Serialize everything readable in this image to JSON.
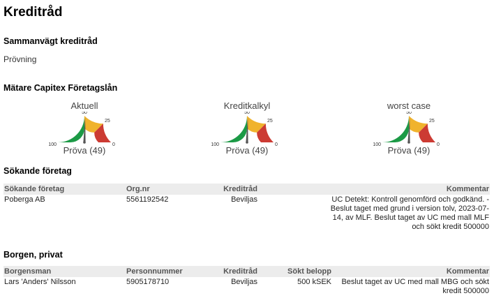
{
  "page_title": "Kreditråd",
  "overall": {
    "heading": "Sammanvägt kreditråd",
    "value": "Prövning"
  },
  "meters": {
    "heading": "Mätare Capitex Företagslån",
    "scale_labels": {
      "min": "100",
      "mid": "50",
      "quarter": "25",
      "max": "0"
    },
    "colors": {
      "green": "#1c9a46",
      "yellow": "#f0b32d",
      "red": "#cc3b33",
      "needle": "#555555"
    },
    "items": [
      {
        "title": "Aktuell",
        "value_text": "Pröva (49)",
        "value": 49
      },
      {
        "title": "Kreditkalkyl",
        "value_text": "Pröva (49)",
        "value": 49
      },
      {
        "title": "worst case",
        "value_text": "Pröva (49)",
        "value": 49
      }
    ]
  },
  "applicant": {
    "heading": "Sökande företag",
    "columns": [
      "Sökande företag",
      "Org.nr",
      "Kreditråd",
      "Kommentar"
    ],
    "rows": [
      {
        "name": "Poberga AB",
        "orgnr": "5561192542",
        "advice": "Beviljas",
        "comment_lines": [
          "UC Detekt: Kontroll genomförd och godkänd. -",
          "Beslut taget med grund i version tolv, 2023-07-",
          "14, av MLF. Beslut taget av UC med mall MLF",
          "och sökt kredit 500000"
        ]
      }
    ]
  },
  "guarantor": {
    "heading": "Borgen, privat",
    "columns": [
      "Borgensman",
      "Personnummer",
      "Kreditråd",
      "Sökt belopp",
      "Kommentar"
    ],
    "rows": [
      {
        "name": "Lars 'Anders' Nilsson",
        "personnr": "5905178710",
        "advice": "Beviljas",
        "amount": "500 kSEK",
        "comment_lines": [
          "Beslut taget av UC med mall MBG och sökt",
          "kredit 500000"
        ]
      }
    ]
  }
}
